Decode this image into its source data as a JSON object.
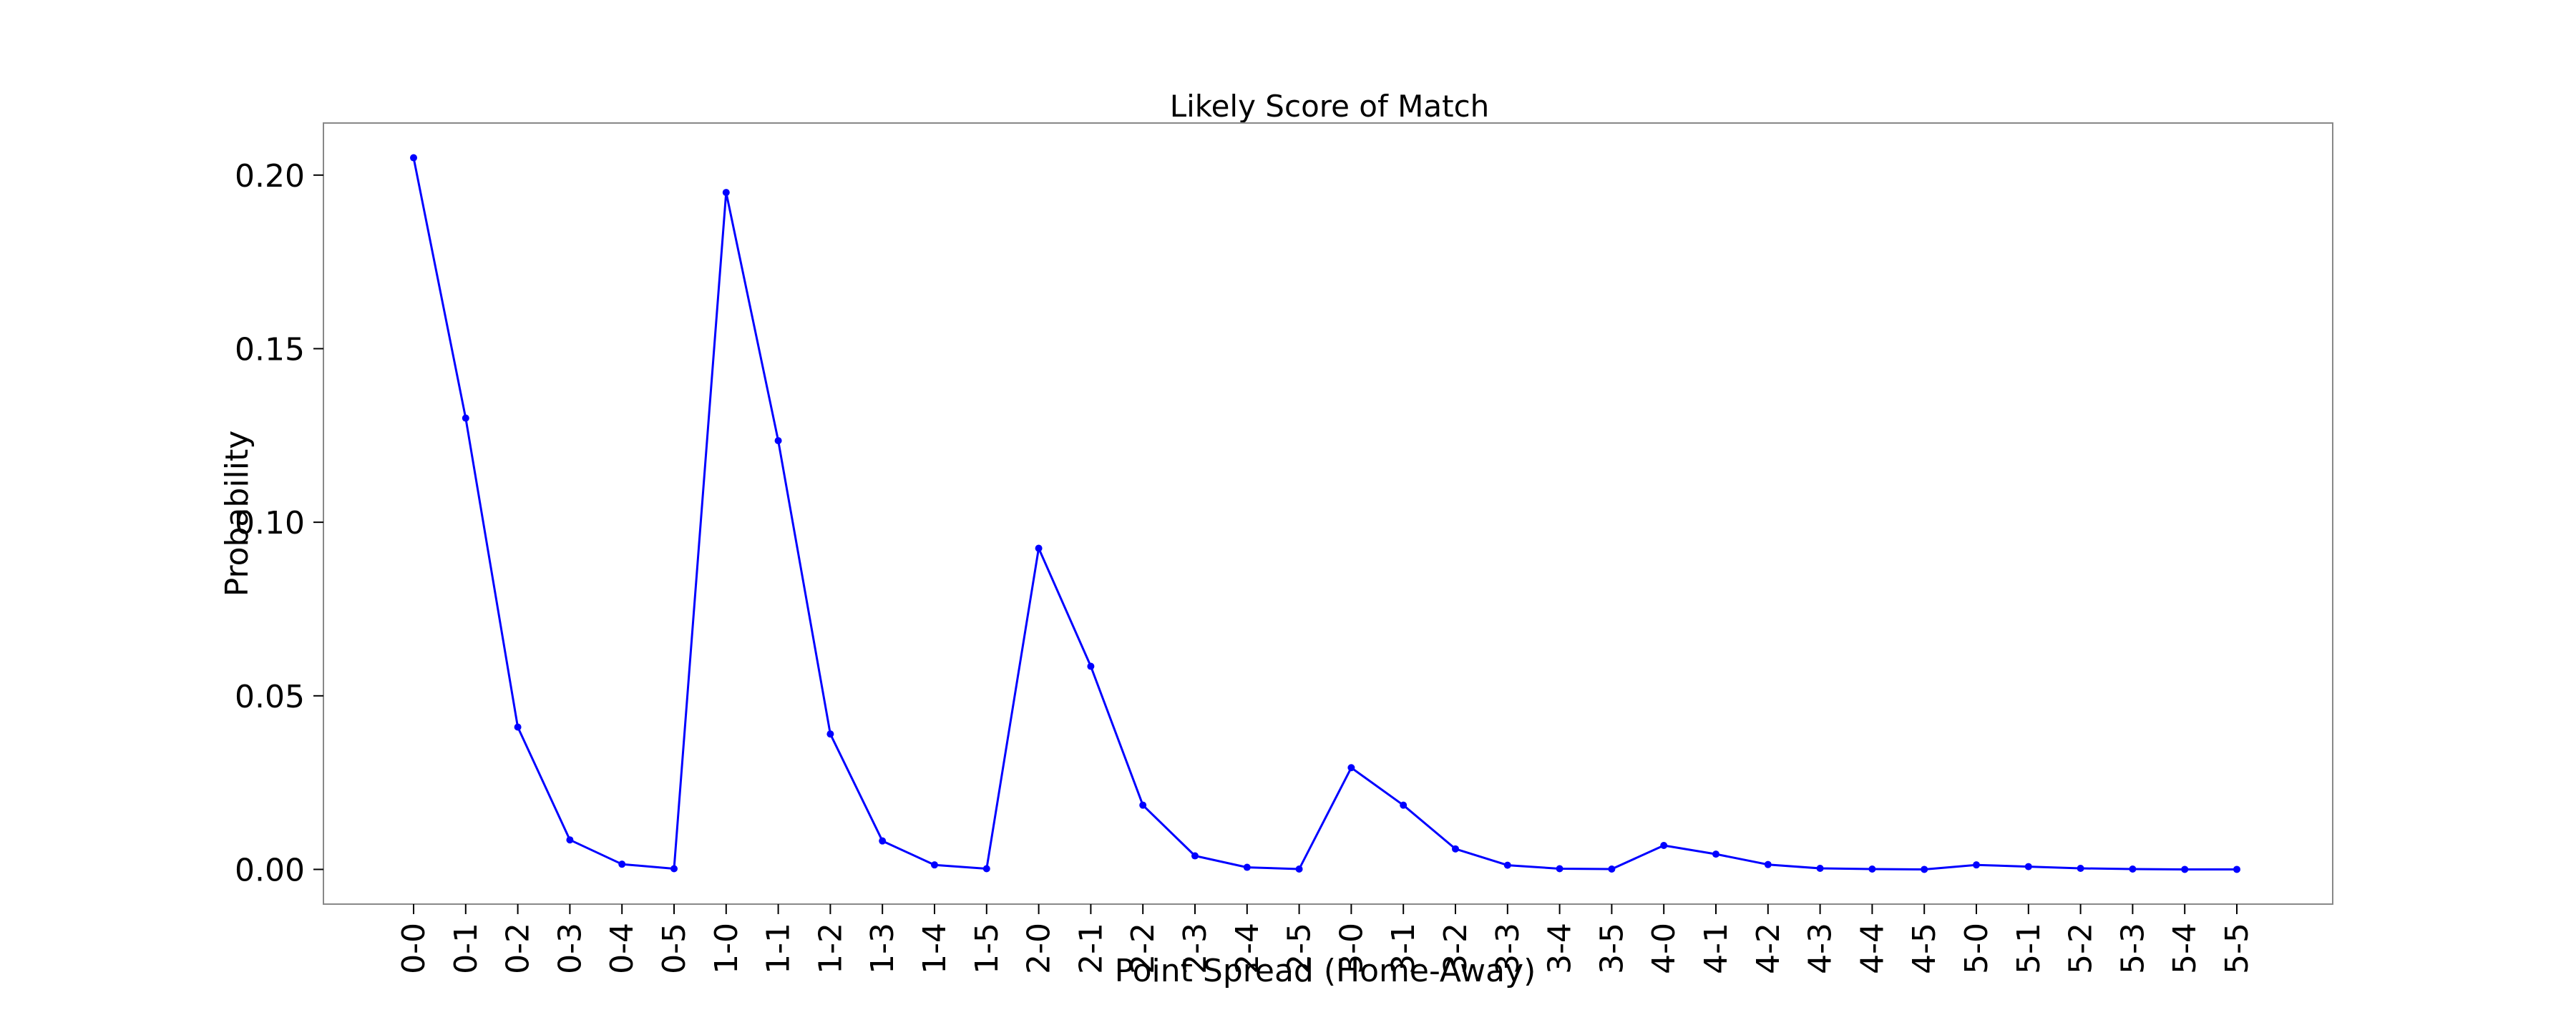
{
  "chart_data": {
    "type": "line",
    "title": "Likely Score of Match",
    "xlabel": "Point Spread (Home-Away)",
    "ylabel": "Probability",
    "ylim": [
      -0.01,
      0.215
    ],
    "yticks": [
      "0.00",
      "0.05",
      "0.10",
      "0.15",
      "0.20"
    ],
    "grid": false,
    "legend": "none",
    "line_color": "#0000ff",
    "marker": "dot",
    "categories": [
      "0-0",
      "0-1",
      "0-2",
      "0-3",
      "0-4",
      "0-5",
      "1-0",
      "1-1",
      "1-2",
      "1-3",
      "1-4",
      "1-5",
      "2-0",
      "2-1",
      "2-2",
      "2-3",
      "2-4",
      "2-5",
      "3-0",
      "3-1",
      "3-2",
      "3-3",
      "3-4",
      "3-5",
      "4-0",
      "4-1",
      "4-2",
      "4-3",
      "4-4",
      "4-5",
      "5-0",
      "5-1",
      "5-2",
      "5-3",
      "5-4",
      "5-5"
    ],
    "series": [
      {
        "values": [
          0.205,
          0.13,
          0.041,
          0.0085,
          0.0015,
          0.0002,
          0.195,
          0.1235,
          0.039,
          0.0082,
          0.0013,
          0.0002,
          0.0925,
          0.0585,
          0.0185,
          0.0039,
          0.0006,
          0.0001,
          0.0293,
          0.0185,
          0.0059,
          0.0012,
          0.0002,
          0.0001,
          0.0069,
          0.0044,
          0.0014,
          0.0003,
          0.0001,
          0.0,
          0.0013,
          0.0008,
          0.0003,
          0.0001,
          0.0,
          0.0
        ]
      }
    ]
  }
}
